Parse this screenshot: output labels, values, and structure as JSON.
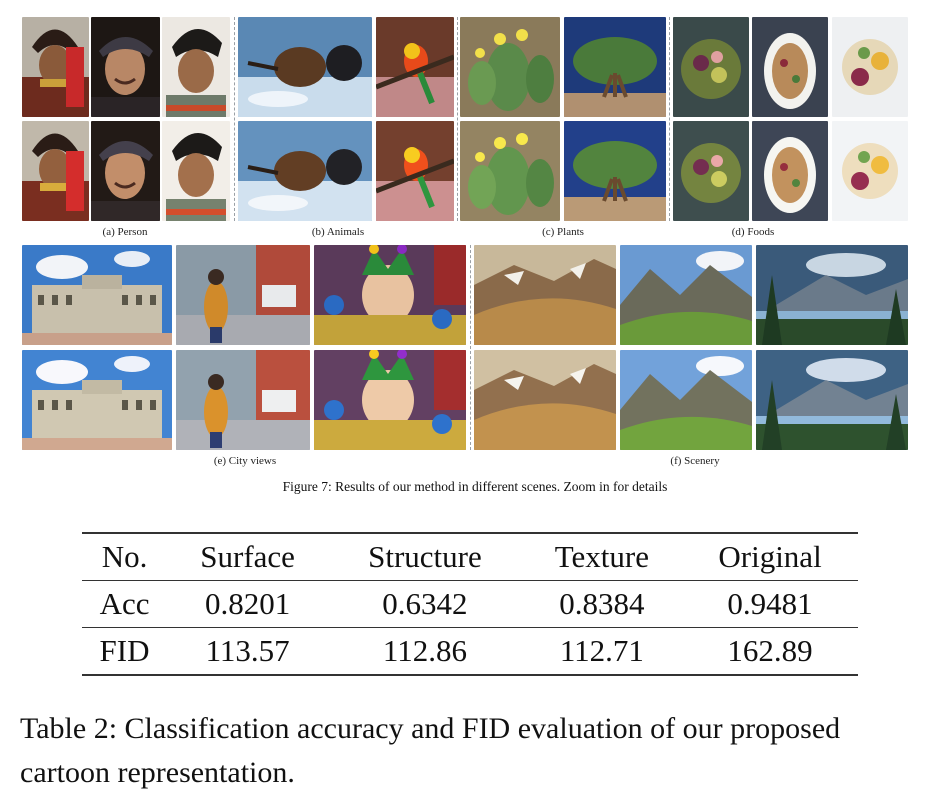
{
  "figure": {
    "caption": "Figure 7: Results of our method in different scenes. Zoom in for details",
    "groups": [
      {
        "id": "person",
        "label": "(a) Person"
      },
      {
        "id": "animals",
        "label": "(b) Animals"
      },
      {
        "id": "plants",
        "label": "(c) Plants"
      },
      {
        "id": "foods",
        "label": "(d) Foods"
      },
      {
        "id": "city",
        "label": "(e) City views"
      },
      {
        "id": "scenery",
        "label": "(f) Scenery"
      }
    ]
  },
  "table": {
    "headers": [
      "No.",
      "Surface",
      "Structure",
      "Texture",
      "Original"
    ],
    "rows": [
      [
        "Acc",
        "0.8201",
        "0.6342",
        "0.8384",
        "0.9481"
      ],
      [
        "FID",
        "113.57",
        "112.86",
        "112.71",
        "162.89"
      ]
    ],
    "caption": "Table 2: Classification accuracy and FID evaluation of our proposed cartoon representation."
  },
  "colors": {
    "rule": "#333333",
    "text": "#111111"
  }
}
